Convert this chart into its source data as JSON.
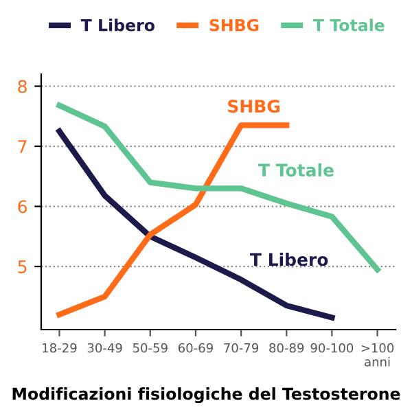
{
  "chart_data": {
    "type": "line",
    "title": "Modificazioni fisiologiche del Testosterone",
    "categories": [
      "18-29",
      "30-49",
      "50-59",
      "60-69",
      "70-79",
      "80-89",
      "90-100",
      ">100\nanni"
    ],
    "series": [
      {
        "name": "T Libero",
        "color": "#1c1a4a",
        "values": [
          7.25,
          6.18,
          5.5,
          5.15,
          4.78,
          4.35,
          4.15,
          null
        ]
      },
      {
        "name": "SHBG",
        "color": "#ff6b18",
        "values": [
          4.2,
          4.5,
          5.53,
          6.03,
          7.35,
          7.35,
          null,
          null
        ]
      },
      {
        "name": "T Totale",
        "color": "#5ec491",
        "values": [
          7.68,
          7.33,
          6.4,
          6.3,
          6.3,
          6.05,
          5.83,
          4.95
        ]
      }
    ],
    "ylim": [
      3.95,
      8.2
    ],
    "yticks": [
      5,
      6,
      7,
      8
    ],
    "grid": "y",
    "legend": "top",
    "marker": "none",
    "line_style": "solid",
    "annotations": [
      "SHBG",
      "T Totale",
      "T Libero"
    ]
  }
}
